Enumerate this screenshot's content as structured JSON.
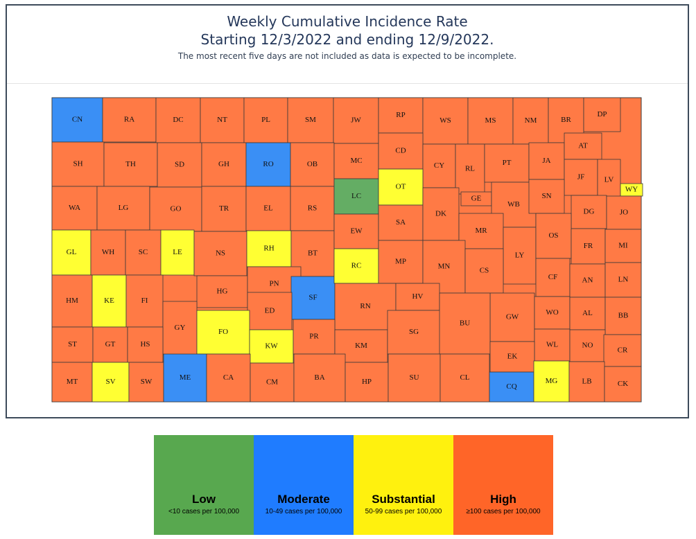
{
  "header": {
    "title_line1": "Weekly Cumulative Incidence Rate",
    "title_line2": "Starting 12/3/2022 and ending 12/9/2022.",
    "note": "The most recent five days are not included as data is expected to be incomplete."
  },
  "colors": {
    "low": "#64ad64",
    "moderate": "#3a8ff5",
    "substantial": "#ffff33",
    "high": "#ff7a45",
    "border": "#3a3a3a"
  },
  "legend": [
    {
      "name": "Low",
      "range": "<10 cases per 100,000",
      "color": "#58a84f"
    },
    {
      "name": "Moderate",
      "range": "10-49 cases per 100,000",
      "color": "#1f7cff"
    },
    {
      "name": "Substantial",
      "range": "50-99 cases per 100,000",
      "color": "#fff10e"
    },
    {
      "name": "High",
      "range": "≥100 cases per 100,000",
      "color": "#ff6528"
    }
  ],
  "counties": [
    {
      "code": "CN",
      "level": "moderate"
    },
    {
      "code": "RA",
      "level": "high"
    },
    {
      "code": "DC",
      "level": "high"
    },
    {
      "code": "NT",
      "level": "high"
    },
    {
      "code": "PL",
      "level": "high"
    },
    {
      "code": "SM",
      "level": "high"
    },
    {
      "code": "JW",
      "level": "high"
    },
    {
      "code": "RP",
      "level": "high"
    },
    {
      "code": "WS",
      "level": "high"
    },
    {
      "code": "MS",
      "level": "high"
    },
    {
      "code": "NM",
      "level": "high"
    },
    {
      "code": "BR",
      "level": "high"
    },
    {
      "code": "DP",
      "level": "high"
    },
    {
      "code": "SH",
      "level": "high"
    },
    {
      "code": "TH",
      "level": "high"
    },
    {
      "code": "SD",
      "level": "high"
    },
    {
      "code": "GH",
      "level": "high"
    },
    {
      "code": "RO",
      "level": "moderate"
    },
    {
      "code": "OB",
      "level": "high"
    },
    {
      "code": "MC",
      "level": "high"
    },
    {
      "code": "CD",
      "level": "high"
    },
    {
      "code": "CY",
      "level": "high"
    },
    {
      "code": "RL",
      "level": "high"
    },
    {
      "code": "PT",
      "level": "high"
    },
    {
      "code": "JA",
      "level": "high"
    },
    {
      "code": "AT",
      "level": "high"
    },
    {
      "code": "JF",
      "level": "high"
    },
    {
      "code": "LV",
      "level": "high"
    },
    {
      "code": "WY",
      "level": "substantial"
    },
    {
      "code": "WA",
      "level": "high"
    },
    {
      "code": "LG",
      "level": "high"
    },
    {
      "code": "GO",
      "level": "high"
    },
    {
      "code": "TR",
      "level": "high"
    },
    {
      "code": "EL",
      "level": "high"
    },
    {
      "code": "RS",
      "level": "high"
    },
    {
      "code": "LC",
      "level": "low"
    },
    {
      "code": "OT",
      "level": "substantial"
    },
    {
      "code": "GE",
      "level": "high"
    },
    {
      "code": "WB",
      "level": "high"
    },
    {
      "code": "SN",
      "level": "high"
    },
    {
      "code": "DG",
      "level": "high"
    },
    {
      "code": "JO",
      "level": "high"
    },
    {
      "code": "GL",
      "level": "substantial"
    },
    {
      "code": "WH",
      "level": "high"
    },
    {
      "code": "SC",
      "level": "high"
    },
    {
      "code": "LE",
      "level": "substantial"
    },
    {
      "code": "NS",
      "level": "high"
    },
    {
      "code": "RH",
      "level": "substantial"
    },
    {
      "code": "BT",
      "level": "high"
    },
    {
      "code": "EW",
      "level": "high"
    },
    {
      "code": "SA",
      "level": "high"
    },
    {
      "code": "DK",
      "level": "high"
    },
    {
      "code": "MR",
      "level": "high"
    },
    {
      "code": "LY",
      "level": "high"
    },
    {
      "code": "OS",
      "level": "high"
    },
    {
      "code": "FR",
      "level": "high"
    },
    {
      "code": "MI",
      "level": "high"
    },
    {
      "code": "HM",
      "level": "high"
    },
    {
      "code": "KE",
      "level": "substantial"
    },
    {
      "code": "FI",
      "level": "high"
    },
    {
      "code": "HG",
      "level": "high"
    },
    {
      "code": "PN",
      "level": "high"
    },
    {
      "code": "SF",
      "level": "moderate"
    },
    {
      "code": "RC",
      "level": "substantial"
    },
    {
      "code": "MP",
      "level": "high"
    },
    {
      "code": "MN",
      "level": "high"
    },
    {
      "code": "CS",
      "level": "high"
    },
    {
      "code": "CF",
      "level": "high"
    },
    {
      "code": "AN",
      "level": "high"
    },
    {
      "code": "LN",
      "level": "high"
    },
    {
      "code": "GY",
      "level": "high"
    },
    {
      "code": "ED",
      "level": "high"
    },
    {
      "code": "RN",
      "level": "high"
    },
    {
      "code": "HV",
      "level": "high"
    },
    {
      "code": "GW",
      "level": "high"
    },
    {
      "code": "WO",
      "level": "high"
    },
    {
      "code": "AL",
      "level": "high"
    },
    {
      "code": "BB",
      "level": "high"
    },
    {
      "code": "ST",
      "level": "high"
    },
    {
      "code": "GT",
      "level": "high"
    },
    {
      "code": "HS",
      "level": "high"
    },
    {
      "code": "FO",
      "level": "substantial"
    },
    {
      "code": "KW",
      "level": "substantial"
    },
    {
      "code": "PR",
      "level": "high"
    },
    {
      "code": "KM",
      "level": "high"
    },
    {
      "code": "SG",
      "level": "high"
    },
    {
      "code": "BU",
      "level": "high"
    },
    {
      "code": "WL",
      "level": "high"
    },
    {
      "code": "NO",
      "level": "high"
    },
    {
      "code": "CR",
      "level": "high"
    },
    {
      "code": "EK",
      "level": "high"
    },
    {
      "code": "MT",
      "level": "high"
    },
    {
      "code": "SV",
      "level": "substantial"
    },
    {
      "code": "SW",
      "level": "high"
    },
    {
      "code": "ME",
      "level": "moderate"
    },
    {
      "code": "CA",
      "level": "high"
    },
    {
      "code": "CM",
      "level": "high"
    },
    {
      "code": "BA",
      "level": "high"
    },
    {
      "code": "HP",
      "level": "high"
    },
    {
      "code": "SU",
      "level": "high"
    },
    {
      "code": "CL",
      "level": "high"
    },
    {
      "code": "CQ",
      "level": "moderate"
    },
    {
      "code": "MG",
      "level": "substantial"
    },
    {
      "code": "LB",
      "level": "high"
    },
    {
      "code": "CK",
      "level": "high"
    }
  ]
}
